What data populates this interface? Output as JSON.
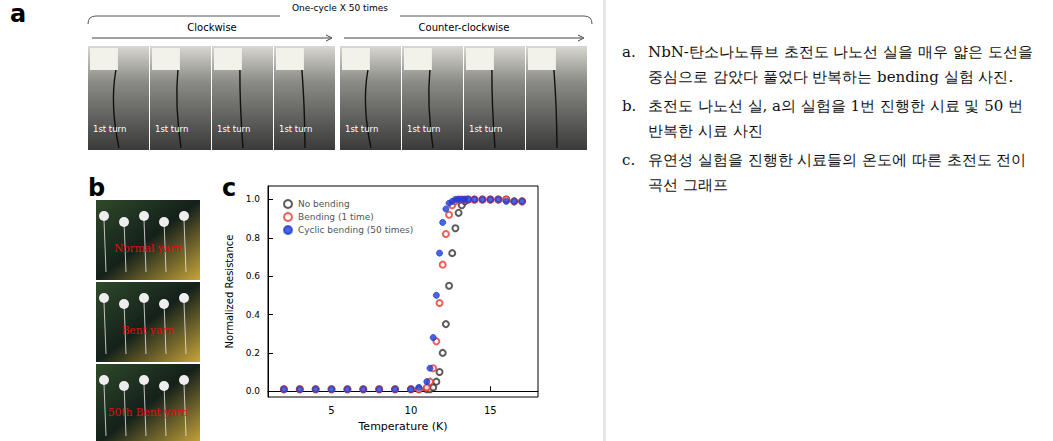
{
  "panels": {
    "a": {
      "letter": "a",
      "title": "One-cycle X 50 times",
      "groups": [
        {
          "label": "Clockwise",
          "frames": [
            "1st turn",
            "1st turn",
            "1st turn",
            "1st turn"
          ]
        },
        {
          "label": "Counter-clockwise",
          "frames": [
            "1st turn",
            "1st turn",
            "1st turn",
            null
          ]
        }
      ]
    },
    "b": {
      "letter": "b",
      "photos": [
        "Normal yarn",
        "Bent yarn",
        "50th Bent yarn"
      ]
    },
    "c": {
      "letter": "c"
    }
  },
  "chart_data": {
    "type": "scatter",
    "x_label": "Temperature (K)",
    "y_label": "Normalized Resistance",
    "xlim": [
      1,
      18
    ],
    "xticks": [
      5,
      10,
      15
    ],
    "ylim": [
      -0.03,
      1.07
    ],
    "yticks": [
      {
        "value": 0,
        "label": "0.0"
      },
      0.2,
      0.4,
      0.6,
      0.8,
      {
        "value": 1,
        "label": "1.0"
      }
    ],
    "grid": false,
    "legend": "upper left",
    "x": [
      2,
      3,
      4,
      5,
      6,
      7,
      8,
      9,
      10,
      10.5,
      11,
      11.2,
      11.4,
      11.6,
      11.8,
      12,
      12.2,
      12.4,
      12.6,
      12.8,
      13,
      13.2,
      13.4,
      13.6,
      14,
      14.5,
      15,
      15.5,
      16,
      16.5,
      17
    ],
    "series": [
      {
        "name": "No bending",
        "color": "#333333",
        "marker": "open_circle",
        "values": [
          0.01,
          0.01,
          0.01,
          0.01,
          0.01,
          0.01,
          0.01,
          0.01,
          0.01,
          0.01,
          0.01,
          0.01,
          0.02,
          0.05,
          0.1,
          0.2,
          0.35,
          0.55,
          0.72,
          0.85,
          0.93,
          0.97,
          0.99,
          1.0,
          1.0,
          1.0,
          1.0,
          1.0,
          1.0,
          0.99,
          0.99
        ]
      },
      {
        "name": "Bending (1 time)",
        "color": "#e8382f",
        "marker": "open_circle",
        "values": [
          0.01,
          0.01,
          0.01,
          0.01,
          0.01,
          0.01,
          0.01,
          0.01,
          0.01,
          0.01,
          0.02,
          0.05,
          0.12,
          0.26,
          0.46,
          0.66,
          0.82,
          0.92,
          0.97,
          0.99,
          1.0,
          1.0,
          1.0,
          1.0,
          1.0,
          1.0,
          1.0,
          1.0,
          1.0,
          0.99,
          0.99
        ]
      },
      {
        "name": "Cyclic bending (50 times)",
        "color": "#1f3fd6",
        "marker": "filled_circle",
        "values": [
          0.01,
          0.01,
          0.01,
          0.01,
          0.01,
          0.01,
          0.01,
          0.01,
          0.01,
          0.02,
          0.05,
          0.12,
          0.28,
          0.5,
          0.72,
          0.88,
          0.95,
          0.98,
          0.99,
          1.0,
          1.0,
          1.0,
          1.0,
          1.0,
          1.0,
          1.0,
          1.0,
          1.0,
          0.99,
          0.99,
          0.99
        ]
      }
    ]
  },
  "captions": [
    {
      "label": "a.",
      "text": "NbN-탄소나노튜브 초전도 나노선 실을 매우 얇은 도선을 중심으로 감았다 풀었다 반복하는 bending 실험 사진."
    },
    {
      "label": "b.",
      "text": "초전도 나노선 실, a의 실험을 1번 진행한 시료 및 50 번 반복한 시료 사진"
    },
    {
      "label": "c.",
      "text": "유연성 실험을 진행한 시료들의 온도에 따른 초전도 전이 곡선 그래프"
    }
  ]
}
